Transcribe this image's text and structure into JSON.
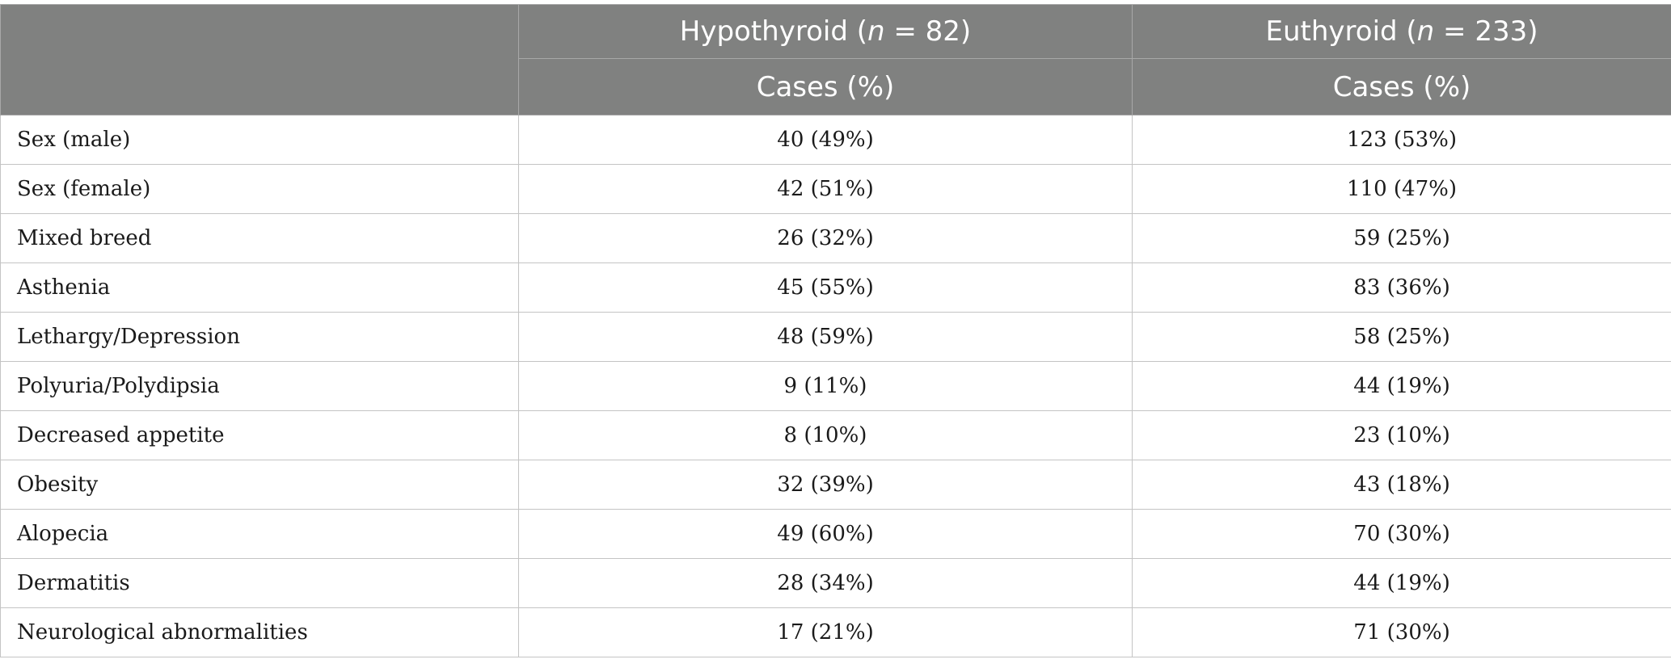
{
  "header": {
    "groups": [
      {
        "label_prefix": "Hypothyroid (",
        "n_symbol": "n",
        "label_suffix": " = 82)"
      },
      {
        "label_prefix": "Euthyroid (",
        "n_symbol": "n",
        "label_suffix": " = 233)"
      }
    ],
    "subheaders": [
      "Cases (%)",
      "Cases (%)"
    ]
  },
  "rows": [
    {
      "label": "Sex (male)",
      "hypothyroid": "40 (49%)",
      "euthyroid": "123 (53%)"
    },
    {
      "label": "Sex (female)",
      "hypothyroid": "42 (51%)",
      "euthyroid": "110 (47%)"
    },
    {
      "label": "Mixed breed",
      "hypothyroid": "26 (32%)",
      "euthyroid": "59 (25%)"
    },
    {
      "label": "Asthenia",
      "hypothyroid": "45 (55%)",
      "euthyroid": "83 (36%)"
    },
    {
      "label": "Lethargy/Depression",
      "hypothyroid": "48 (59%)",
      "euthyroid": "58 (25%)"
    },
    {
      "label": "Polyuria/Polydipsia",
      "hypothyroid": "9 (11%)",
      "euthyroid": "44 (19%)"
    },
    {
      "label": "Decreased appetite",
      "hypothyroid": "8 (10%)",
      "euthyroid": "23 (10%)"
    },
    {
      "label": "Obesity",
      "hypothyroid": "32 (39%)",
      "euthyroid": "43 (18%)"
    },
    {
      "label": "Alopecia",
      "hypothyroid": "49 (60%)",
      "euthyroid": "70 (30%)"
    },
    {
      "label": "Dermatitis",
      "hypothyroid": "28 (34%)",
      "euthyroid": "44 (19%)"
    },
    {
      "label": "Neurological abnormalities",
      "hypothyroid": "17 (21%)",
      "euthyroid": "71 (30%)"
    }
  ]
}
